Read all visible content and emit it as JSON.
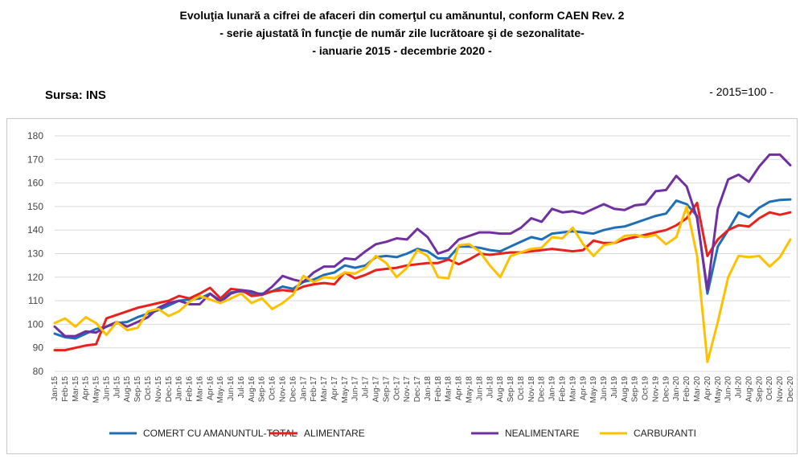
{
  "header": {
    "title_line1": "Evoluţia lunară a cifrei de afaceri din comerţul cu amănuntul,  conform CAEN Rev. 2",
    "title_line2": "- serie ajustată în funcţie de număr zile lucrătoare şi de sezonalitate-",
    "title_line3": "- ianuarie 2015 -  decembrie 2020  -",
    "source": "Sursa: INS",
    "unit": "- 2015=100 -"
  },
  "chart_data": {
    "type": "line",
    "ylim": [
      80,
      180
    ],
    "yticks": [
      80,
      90,
      100,
      110,
      120,
      130,
      140,
      150,
      160,
      170,
      180
    ],
    "grid": true,
    "legend": "bottom",
    "x": [
      "Jan-15",
      "Feb-15",
      "Mar-15",
      "Apr-15",
      "May-15",
      "Jun-15",
      "Jul-15",
      "Aug-15",
      "Sep-15",
      "Oct-15",
      "Nov-15",
      "Dec-15",
      "Jan-16",
      "Feb-16",
      "Mar-16",
      "Apr-16",
      "May-16",
      "Jun-16",
      "Jul-16",
      "Aug-16",
      "Sep-16",
      "Oct-16",
      "Nov-16",
      "Dec-16",
      "Jan-17",
      "Feb-17",
      "Mar-17",
      "Apr-17",
      "May-17",
      "Jun-17",
      "Jul-17",
      "Aug-17",
      "Sep-17",
      "Oct-17",
      "Nov-17",
      "Dec-17",
      "Jan-18",
      "Feb-18",
      "Mar-18",
      "Apr-18",
      "May-18",
      "Jun-18",
      "Jul-18",
      "Aug-18",
      "Sep-18",
      "Oct-18",
      "Nov-18",
      "Dec-18",
      "Jan-19",
      "Feb-19",
      "Mar-19",
      "Apr-19",
      "May-19",
      "Jun-19",
      "Jul-19",
      "Aug-19",
      "Sep-19",
      "Oct-19",
      "Nov-19",
      "Dec-19",
      "Jan-20",
      "Feb-20",
      "Mar-20",
      "Apr-20",
      "May-20",
      "Jun-20",
      "Jul-20",
      "Aug-20",
      "Sep-20",
      "Oct-20",
      "Nov-20",
      "Dec-20"
    ],
    "x_tick_labels": [
      "Jan-15",
      "Mar-15",
      "May-15",
      "Jul-15",
      "Sep-15",
      "Nov-15",
      "Jan-16",
      "Mar-16",
      "May-16",
      "Jul-16",
      "Sep-16",
      "Nov-16",
      "Jan-17",
      "Mar-17",
      "May-17",
      "Jul-17",
      "Sep-17",
      "Nov-17",
      "Jan-18",
      "Mar-18",
      "May-18",
      "Jul-18",
      "Sep-18",
      "Nov-18",
      "Jan-19",
      "Mar-19",
      "May-19",
      "Jul-19",
      "Sep-19",
      "Nov-19",
      "Jan-20",
      "Mar-20",
      "May-20",
      "Jul-20",
      "Sep-20",
      "Nov-20",
      "Feb-15",
      "Apr-15",
      "Jun-15",
      "Aug-15",
      "Oct-15",
      "Dec-15",
      "Feb-16",
      "Apr-16",
      "Jun-16",
      "Aug-16",
      "Oct-16",
      "Dec-16",
      "Feb-17",
      "Apr-17",
      "Jun-17",
      "Aug-17",
      "Oct-17",
      "Dec-17",
      "Feb-18",
      "Apr-18",
      "Jun-18",
      "Aug-18",
      "Oct-18",
      "Dec-18",
      "Feb-19",
      "Apr-19",
      "Jun-19",
      "Aug-19",
      "Oct-19",
      "Dec-19",
      "Feb-20",
      "Apr-20",
      "Jun-20",
      "Aug-20",
      "Oct-20",
      "Dec-20"
    ],
    "series": [
      {
        "name": "COMERT CU AMANUNTUL-TOTAL",
        "color": "#1f6fb7",
        "values": [
          96,
          94.5,
          94,
          96,
          98,
          99,
          100.5,
          101,
          103,
          104.5,
          106,
          108,
          110,
          110.5,
          111,
          113,
          110,
          113.5,
          114,
          113,
          113,
          114,
          116,
          115,
          118,
          119,
          121,
          122,
          125,
          124,
          125,
          128.5,
          129,
          128.5,
          130,
          132,
          131,
          128,
          128,
          133,
          133,
          132.5,
          131.5,
          131,
          133,
          135,
          137,
          136,
          138.5,
          139,
          139.5,
          139,
          138.5,
          140,
          141,
          141.5,
          143,
          144.5,
          146,
          147,
          152.5,
          151,
          146,
          113,
          133,
          140,
          147.5,
          145.5,
          149.5,
          152,
          152.8,
          153
        ]
      },
      {
        "name": "ALIMENTARE",
        "color": "#e8211d",
        "values": [
          89,
          89,
          90,
          91,
          91.5,
          102.5,
          104,
          105.5,
          107,
          108,
          109,
          110,
          112,
          111,
          113,
          115.5,
          111,
          115,
          114.5,
          112,
          112.5,
          114,
          114.5,
          114,
          116,
          117,
          117.5,
          117,
          122,
          119.5,
          121,
          123,
          123.5,
          124,
          125,
          125.5,
          126,
          126,
          127.5,
          125.5,
          127.5,
          130,
          129.5,
          130,
          130.5,
          130.5,
          131,
          131.5,
          132,
          131.5,
          131,
          131.5,
          135.5,
          134.5,
          134.5,
          136,
          137,
          138,
          139,
          140,
          142,
          145,
          151.5,
          129,
          136,
          140,
          142,
          141.5,
          145,
          147.5,
          146.5,
          147.5
        ]
      },
      {
        "name": "NEALIMENTARE",
        "color": "#7030a0",
        "values": [
          99,
          95,
          95,
          97,
          96.5,
          99,
          101,
          99,
          101,
          103,
          107,
          109,
          110,
          108.5,
          108.5,
          113,
          109.5,
          113,
          114.5,
          114,
          112.5,
          116,
          120.5,
          119,
          118,
          122,
          124.5,
          124.5,
          128,
          127.5,
          131,
          134,
          135,
          136.5,
          136,
          140.5,
          137,
          130,
          131.5,
          136,
          137.5,
          139,
          139,
          138.5,
          138.5,
          141,
          145,
          143.5,
          149,
          147.5,
          148,
          147,
          149,
          151,
          149,
          148.5,
          150.5,
          151,
          156.5,
          157,
          163,
          158.5,
          145,
          114.5,
          149,
          161.5,
          163.5,
          160.5,
          167,
          172,
          172,
          167.5
        ]
      },
      {
        "name": "CARBURANTI",
        "color": "#ffc000",
        "values": [
          100.5,
          102.5,
          99,
          103,
          100.5,
          95.5,
          101,
          97.5,
          98.5,
          105.5,
          106.5,
          103.5,
          105.5,
          109.5,
          112,
          110.5,
          109,
          111,
          113,
          109,
          111,
          106.5,
          109,
          112.5,
          120.5,
          118,
          120,
          119.5,
          122,
          121.5,
          124,
          129,
          126,
          120,
          124,
          131.5,
          129,
          120,
          119.5,
          133.5,
          134,
          131,
          125,
          120,
          129,
          130.5,
          132,
          132.5,
          137,
          136.5,
          141,
          134,
          129,
          133.5,
          134.5,
          137.5,
          138,
          137,
          138,
          134,
          137,
          150,
          129,
          84,
          101,
          120,
          129,
          128.5,
          129,
          124.5,
          128.5,
          136
        ]
      }
    ]
  }
}
